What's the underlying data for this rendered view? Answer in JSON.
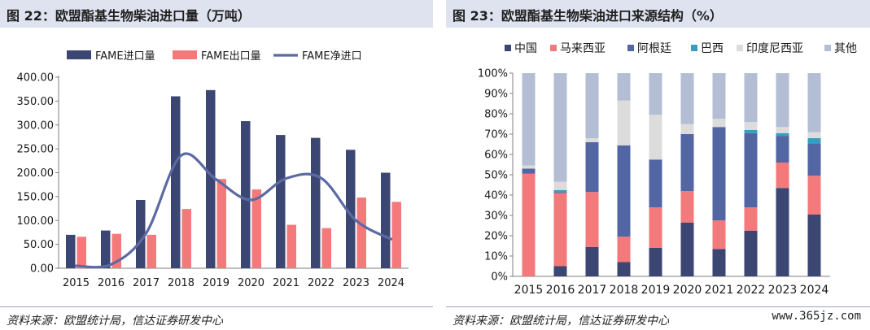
{
  "left_panel": {
    "title": "图 22：欧盟酯基生物柴油进口量（万吨）",
    "source": "资料来源：欧盟统计局，信达证券研发中心"
  },
  "right_panel": {
    "title": "图 23：欧盟酯基生物柴油进口来源结构（%）",
    "source": "资料来源：欧盟统计局，信达证券研发中心"
  },
  "watermark": "www.365jz.com",
  "colors": {
    "import": "#3b4673",
    "export": "#f4797b",
    "net": "#5c6aa3",
    "china": "#3b4673",
    "malaysia": "#f4797b",
    "argentina": "#5366a4",
    "brazil": "#3a9cc0",
    "indonesia": "#dcdcdc",
    "other": "#b3bdd3"
  },
  "chart_data": [
    {
      "type": "bar",
      "categories": [
        "2015",
        "2016",
        "2017",
        "2018",
        "2019",
        "2020",
        "2021",
        "2022",
        "2023",
        "2024"
      ],
      "series": [
        {
          "name": "FAME进口量",
          "kind": "bar",
          "values": [
            70,
            79,
            143,
            360,
            373,
            308,
            279,
            273,
            248,
            200
          ]
        },
        {
          "name": "FAME出口量",
          "kind": "bar",
          "values": [
            66,
            72,
            70,
            124,
            187,
            165,
            91,
            84,
            148,
            139
          ]
        },
        {
          "name": "FAME净进口",
          "kind": "line",
          "values": [
            5,
            8,
            73,
            236,
            186,
            143,
            188,
            189,
            100,
            61
          ]
        }
      ],
      "yticks": [
        "0.00",
        "50.00",
        "100.00",
        "150.00",
        "200.00",
        "250.00",
        "300.00",
        "350.00",
        "400.00"
      ],
      "ylim": [
        0,
        400
      ],
      "legend": "top",
      "grid": false
    },
    {
      "type": "bar",
      "stacked": true,
      "categories": [
        "2015",
        "2016",
        "2017",
        "2018",
        "2019",
        "2020",
        "2021",
        "2022",
        "2023",
        "2024"
      ],
      "series": [
        {
          "name": "中国",
          "values": [
            0,
            5,
            14.5,
            7,
            14,
            26.5,
            13.5,
            22.5,
            43.5,
            30.5
          ]
        },
        {
          "name": "马来西亚",
          "values": [
            50.5,
            36,
            27,
            12.5,
            20,
            15.5,
            14,
            11.5,
            12.5,
            19
          ]
        },
        {
          "name": "阿根廷",
          "values": [
            2.5,
            0.5,
            24.5,
            45,
            23.5,
            28,
            46,
            36.5,
            13,
            16
          ]
        },
        {
          "name": "巴西",
          "values": [
            0,
            1,
            0,
            0,
            0,
            0,
            0,
            1.5,
            1.5,
            2.5
          ]
        },
        {
          "name": "印度尼西亚",
          "values": [
            1.5,
            4,
            2,
            22,
            22,
            5,
            4,
            4,
            3,
            3
          ]
        },
        {
          "name": "其他",
          "values": [
            45.5,
            53.5,
            32,
            13.5,
            20.5,
            25,
            22.5,
            24,
            26.5,
            29
          ]
        }
      ],
      "yticks": [
        "0%",
        "10%",
        "20%",
        "30%",
        "40%",
        "50%",
        "60%",
        "70%",
        "80%",
        "90%",
        "100%"
      ],
      "ylim": [
        0,
        100
      ],
      "legend": "top",
      "grid": false
    }
  ]
}
